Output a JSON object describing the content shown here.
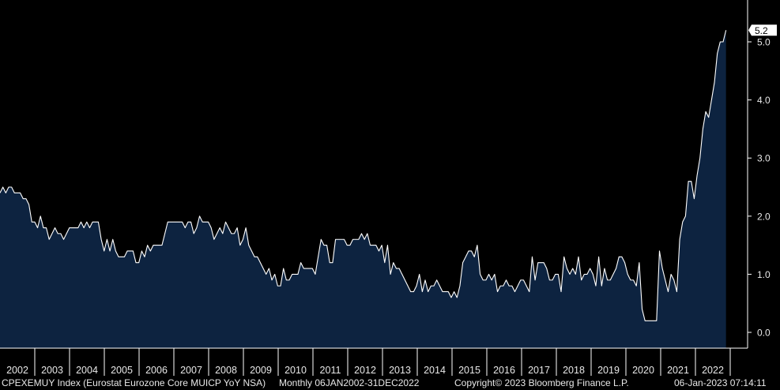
{
  "footer": {
    "ticker": "CPEXEMUY Index (Eurostat Eurozone Core MUICP YoY NSA)",
    "period": "Monthly 06JAN2002-31DEC2022",
    "copyright": "Copyright© 2023 Bloomberg Finance L.P.",
    "timestamp": "06-Jan-2023 07:14:11"
  },
  "colors": {
    "background": "#000000",
    "fill": "#0d2340",
    "line": "#ffffff",
    "axis": "#ffffff"
  },
  "chart_data": {
    "type": "area",
    "title": "",
    "xlabel": "",
    "ylabel": "",
    "ylim": [
      -0.3,
      5.8
    ],
    "yticks": [
      "0.0",
      "1.0",
      "2.0",
      "3.0",
      "4.0",
      "5.0"
    ],
    "years": [
      "2002",
      "2003",
      "2004",
      "2005",
      "2006",
      "2007",
      "2008",
      "2009",
      "2010",
      "2011",
      "2012",
      "2013",
      "2014",
      "2015",
      "2016",
      "2017",
      "2018",
      "2019",
      "2020",
      "2021",
      "2022"
    ],
    "last_value_label": "5.2",
    "series": [
      {
        "values": [
          2.4,
          2.5,
          2.4,
          2.5,
          2.5,
          2.4,
          2.4,
          2.4,
          2.3,
          2.3,
          2.2,
          1.9,
          1.9,
          1.8,
          2.0,
          1.8,
          1.8,
          1.6,
          1.7,
          1.8,
          1.7,
          1.7,
          1.6,
          1.7,
          1.8,
          1.8,
          1.8,
          1.8,
          1.9,
          1.8,
          1.9,
          1.8,
          1.9,
          1.9,
          1.9,
          1.6,
          1.4,
          1.6,
          1.4,
          1.6,
          1.4,
          1.3,
          1.3,
          1.3,
          1.4,
          1.4,
          1.4,
          1.2,
          1.2,
          1.4,
          1.3,
          1.5,
          1.4,
          1.5,
          1.5,
          1.5,
          1.5,
          1.7,
          1.9,
          1.9,
          1.9,
          1.9,
          1.9,
          1.9,
          1.8,
          1.9,
          1.9,
          1.7,
          1.8,
          2.0,
          1.9,
          1.9,
          1.9,
          1.8,
          1.6,
          1.7,
          1.8,
          1.7,
          1.9,
          1.8,
          1.7,
          1.7,
          1.8,
          1.5,
          1.6,
          1.8,
          1.5,
          1.4,
          1.3,
          1.3,
          1.2,
          1.1,
          1.0,
          1.1,
          0.9,
          1.0,
          0.8,
          0.8,
          1.1,
          0.9,
          0.9,
          1.0,
          1.0,
          1.0,
          1.2,
          1.1,
          1.1,
          1.1,
          1.1,
          1.0,
          1.3,
          1.6,
          1.5,
          1.5,
          1.2,
          1.2,
          1.6,
          1.6,
          1.6,
          1.6,
          1.5,
          1.5,
          1.6,
          1.6,
          1.6,
          1.7,
          1.6,
          1.7,
          1.5,
          1.5,
          1.5,
          1.4,
          1.5,
          1.2,
          1.5,
          1.0,
          1.2,
          1.1,
          1.1,
          1.0,
          0.9,
          0.8,
          0.7,
          0.7,
          0.8,
          1.0,
          0.7,
          0.9,
          0.7,
          0.8,
          0.8,
          0.9,
          0.8,
          0.7,
          0.7,
          0.7,
          0.6,
          0.7,
          0.6,
          0.8,
          1.2,
          1.3,
          1.4,
          1.4,
          1.3,
          1.5,
          1.0,
          0.9,
          0.9,
          1.0,
          0.9,
          1.0,
          0.7,
          0.8,
          0.8,
          0.9,
          0.8,
          0.8,
          0.7,
          0.8,
          0.9,
          0.9,
          0.8,
          0.7,
          1.3,
          0.9,
          1.2,
          1.2,
          1.2,
          1.1,
          0.9,
          0.9,
          1.0,
          1.0,
          0.7,
          1.3,
          1.1,
          1.0,
          1.1,
          1.0,
          1.3,
          0.9,
          1.0,
          1.0,
          1.1,
          1.0,
          0.8,
          1.3,
          0.8,
          1.1,
          0.9,
          0.9,
          1.0,
          1.1,
          1.3,
          1.3,
          1.2,
          1.0,
          0.9,
          0.9,
          0.8,
          1.2,
          0.4,
          0.2,
          0.2,
          0.2,
          0.2,
          0.2,
          1.4,
          1.1,
          0.9,
          0.7,
          1.0,
          0.9,
          0.7,
          1.6,
          1.9,
          2.0,
          2.6,
          2.6,
          2.3,
          2.7,
          3.0,
          3.5,
          3.8,
          3.7,
          4.0,
          4.3,
          4.8,
          5.0,
          5.0,
          5.2
        ]
      }
    ]
  }
}
